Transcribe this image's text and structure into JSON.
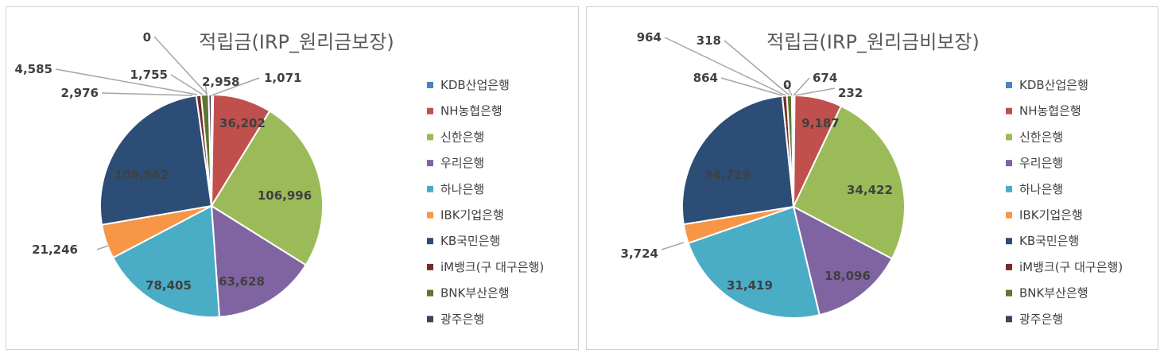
{
  "chart_data": [
    {
      "type": "pie",
      "title": "적립금(IRP_원리금보장)",
      "categories": [
        "KDB산업은행",
        "NH농협은행",
        "신한은행",
        "우리은행",
        "하나은행",
        "IBK기업은행",
        "KB국민은행",
        "iM뱅크(구 대구은행)",
        "BNK부산은행",
        "광주은행"
      ],
      "values": [
        1071,
        36202,
        106996,
        63628,
        78405,
        21246,
        108562,
        2976,
        4585,
        1755
      ],
      "data_labels": [
        "1,071",
        "36,202",
        "106,996",
        "63,628",
        "78,405",
        "21,246",
        "108,562",
        "2,976",
        "4,585",
        "1,755"
      ],
      "extra_labels": [
        "0",
        "2,958"
      ],
      "legend": "right",
      "colors": [
        "#4f81bd",
        "#c0504d",
        "#9bbb59",
        "#8064a2",
        "#4bacc6",
        "#f79646",
        "#2c4d75",
        "#772c2a",
        "#5f7530",
        "#4d3b62"
      ]
    },
    {
      "type": "pie",
      "title": "적립금(IRP_원리금비보장)",
      "categories": [
        "KDB산업은행",
        "NH농협은행",
        "신한은행",
        "우리은행",
        "하나은행",
        "IBK기업은행",
        "KB국민은행",
        "iM뱅크(구 대구은행)",
        "BNK부산은행",
        "광주은행"
      ],
      "values": [
        232,
        9187,
        34422,
        18096,
        31419,
        3724,
        34719,
        864,
        964,
        318
      ],
      "data_labels": [
        "232",
        "9,187",
        "34,422",
        "18,096",
        "31,419",
        "3,724",
        "34,719",
        "864",
        "964",
        "318"
      ],
      "extra_labels": [
        "0",
        "674"
      ],
      "legend": "right",
      "colors": [
        "#4f81bd",
        "#c0504d",
        "#9bbb59",
        "#8064a2",
        "#4bacc6",
        "#f79646",
        "#2c4d75",
        "#772c2a",
        "#5f7530",
        "#4d3b62"
      ]
    }
  ]
}
